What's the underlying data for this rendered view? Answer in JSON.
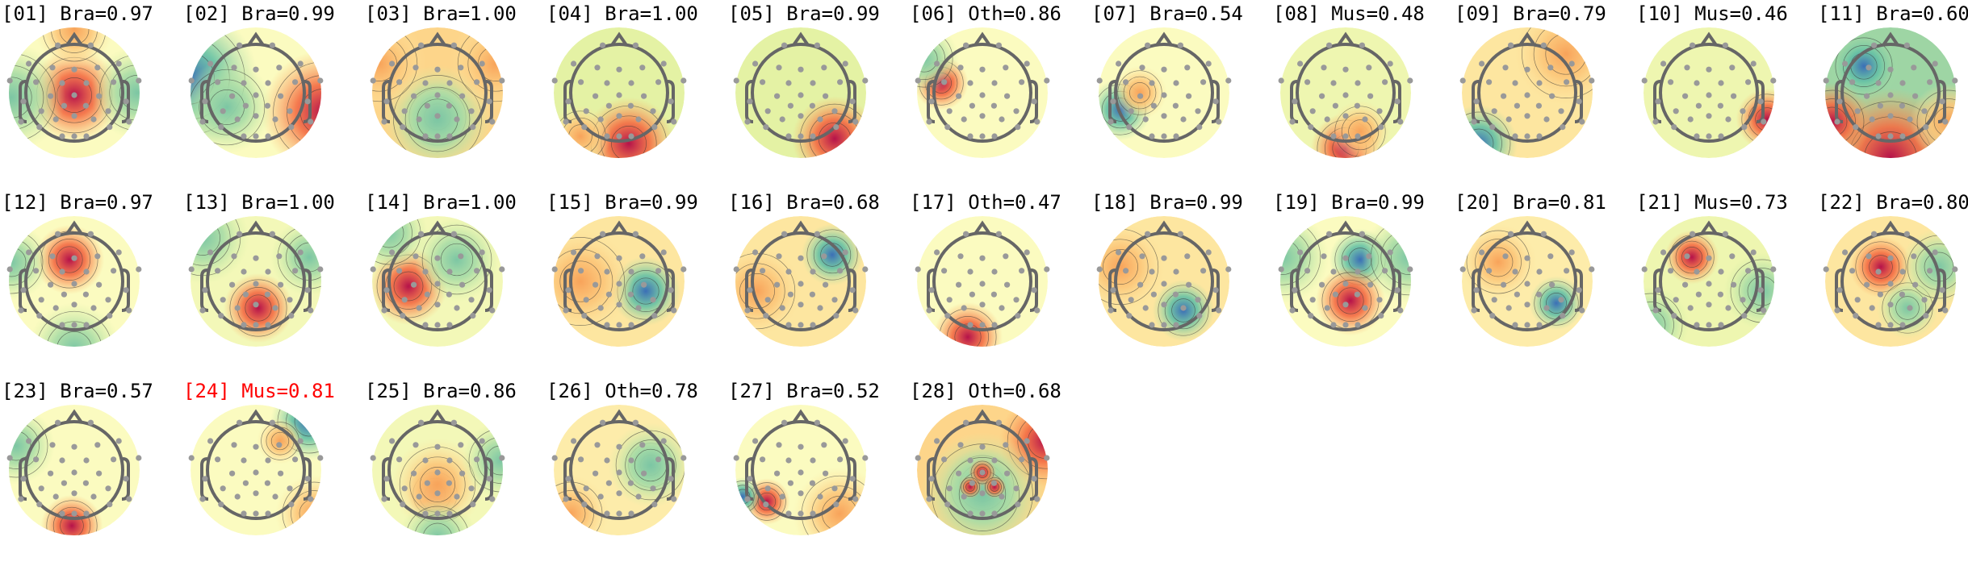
{
  "chart_data": {
    "type": "heatmap",
    "colormap": "spectral-reversed",
    "colors": {
      "positive": "#b5124a",
      "mid_positive": "#f46d43",
      "neutral": "#fbfbc0",
      "mid_negative": "#66c2a5",
      "negative": "#3b6fb6",
      "flagged_title": "#ff0000",
      "sensor": "#999999",
      "head_outline": "#666666"
    },
    "components": [
      {
        "title": "[01] Bra=0.97",
        "flagged": false
      },
      {
        "title": "[02] Bra=0.99",
        "flagged": false
      },
      {
        "title": "[03] Bra=1.00",
        "flagged": false
      },
      {
        "title": "[04] Bra=1.00",
        "flagged": false
      },
      {
        "title": "[05] Bra=0.99",
        "flagged": false
      },
      {
        "title": "[06] Oth=0.86",
        "flagged": false
      },
      {
        "title": "[07] Bra=0.54",
        "flagged": false
      },
      {
        "title": "[08] Mus=0.48",
        "flagged": false
      },
      {
        "title": "[09] Bra=0.79",
        "flagged": false
      },
      {
        "title": "[10] Mus=0.46",
        "flagged": false
      },
      {
        "title": "[11] Bra=0.60",
        "flagged": false
      },
      {
        "title": "[12] Bra=0.97",
        "flagged": false
      },
      {
        "title": "[13] Bra=1.00",
        "flagged": false
      },
      {
        "title": "[14] Bra=1.00",
        "flagged": false
      },
      {
        "title": "[15] Bra=0.99",
        "flagged": false
      },
      {
        "title": "[16] Bra=0.68",
        "flagged": false
      },
      {
        "title": "[17] Oth=0.47",
        "flagged": false
      },
      {
        "title": "[18] Bra=0.99",
        "flagged": false
      },
      {
        "title": "[19] Bra=0.99",
        "flagged": false
      },
      {
        "title": "[20] Bra=0.81",
        "flagged": false
      },
      {
        "title": "[21] Mus=0.73",
        "flagged": false
      },
      {
        "title": "[22] Bra=0.80",
        "flagged": false
      },
      {
        "title": "[23] Bra=0.57",
        "flagged": false
      },
      {
        "title": "[24] Mus=0.81",
        "flagged": true
      },
      {
        "title": "[25] Bra=0.86",
        "flagged": false
      },
      {
        "title": "[26] Oth=0.78",
        "flagged": false
      },
      {
        "title": "[27] Bra=0.52",
        "flagged": false
      },
      {
        "title": "[28] Oth=0.68",
        "flagged": false
      }
    ]
  }
}
